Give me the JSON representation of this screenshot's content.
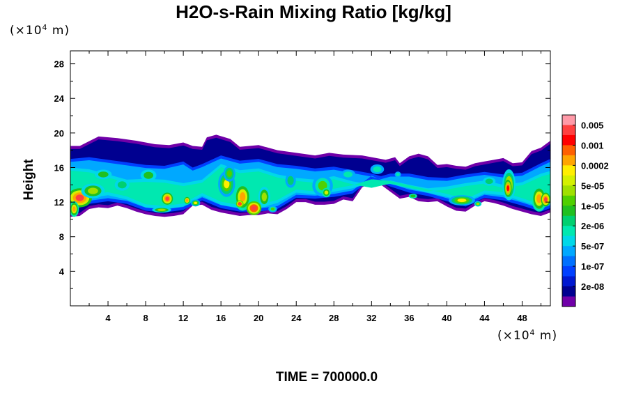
{
  "chart_data": {
    "type": "heatmap",
    "title": "H2O-s-Rain Mixing Ratio [kg/kg]",
    "xlabel": "",
    "ylabel": "Height",
    "x_unit": {
      "prefix": "(×10",
      "exp": "4",
      "suffix": " m)"
    },
    "y_unit": {
      "prefix": "(×10",
      "exp": "4",
      "suffix": " m)"
    },
    "xlim": [
      0,
      51
    ],
    "ylim": [
      0,
      29.5
    ],
    "x_ticks": [
      4,
      8,
      12,
      16,
      20,
      24,
      28,
      32,
      36,
      40,
      44,
      48
    ],
    "y_ticks": [
      4,
      8,
      12,
      16,
      20,
      24,
      28
    ],
    "footer": "TIME = 700000.0",
    "colorbar": {
      "labels": [
        "0.005",
        "0.001",
        "0.0002",
        "5e-05",
        "1e-05",
        "2e-06",
        "5e-07",
        "1e-07",
        "2e-08"
      ],
      "colors": [
        "#ff9aa8",
        "#ff4040",
        "#ff0000",
        "#ff6000",
        "#ffa500",
        "#ffee00",
        "#d4f000",
        "#a0e000",
        "#50d000",
        "#20c020",
        "#00d070",
        "#00e8b0",
        "#00d8e8",
        "#00a8ff",
        "#0070ff",
        "#0040ff",
        "#0018d0",
        "#000090",
        "#7000a8"
      ]
    },
    "bands": [
      {
        "top": [
          [
            0,
            18.5
          ],
          [
            1,
            18.5
          ],
          [
            3,
            19.6
          ],
          [
            5,
            19.4
          ],
          [
            7,
            19.1
          ],
          [
            9,
            18.7
          ],
          [
            10.5,
            18.6
          ],
          [
            12,
            18.9
          ],
          [
            13,
            18.5
          ],
          [
            14,
            18.4
          ],
          [
            14.5,
            19.5
          ],
          [
            15.5,
            19.8
          ],
          [
            17,
            19.3
          ],
          [
            18,
            18.4
          ],
          [
            20,
            18.6
          ],
          [
            22,
            18.0
          ],
          [
            24,
            17.7
          ],
          [
            26,
            17.4
          ],
          [
            27.5,
            17.7
          ],
          [
            29,
            17.5
          ],
          [
            31,
            17.4
          ],
          [
            32.5,
            17.1
          ],
          [
            33.5,
            16.9
          ],
          [
            34.5,
            17.2
          ],
          [
            35,
            16.5
          ],
          [
            36,
            17.3
          ],
          [
            37,
            17.6
          ],
          [
            38,
            17.3
          ],
          [
            39,
            16.3
          ],
          [
            40,
            16.4
          ],
          [
            41,
            16.2
          ],
          [
            42,
            16.1
          ],
          [
            43,
            16.5
          ],
          [
            44,
            16.7
          ],
          [
            45,
            16.9
          ],
          [
            46,
            17.1
          ],
          [
            47,
            16.5
          ],
          [
            48,
            16.6
          ],
          [
            49,
            17.9
          ],
          [
            50,
            18.3
          ],
          [
            51,
            19.1
          ]
        ],
        "bottom": [
          [
            0,
            10.3
          ],
          [
            1,
            10.4
          ],
          [
            2,
            11.2
          ],
          [
            3,
            11.4
          ],
          [
            4,
            11.3
          ],
          [
            5,
            11.6
          ],
          [
            6,
            11.3
          ],
          [
            7,
            10.9
          ],
          [
            8,
            10.6
          ],
          [
            9,
            10.4
          ],
          [
            10,
            10.3
          ],
          [
            11,
            10.4
          ],
          [
            12,
            10.6
          ],
          [
            13,
            11.6
          ],
          [
            14,
            11.7
          ],
          [
            15,
            11.1
          ],
          [
            16,
            10.8
          ],
          [
            17,
            10.6
          ],
          [
            18,
            10.4
          ],
          [
            19,
            10.5
          ],
          [
            20,
            10.5
          ],
          [
            21,
            10.7
          ],
          [
            22,
            10.6
          ],
          [
            23,
            11.2
          ],
          [
            24,
            12.0
          ],
          [
            25,
            12.0
          ],
          [
            26,
            11.7
          ],
          [
            27,
            11.7
          ],
          [
            28,
            11.8
          ],
          [
            29,
            12.3
          ],
          [
            30,
            12.1
          ],
          [
            31,
            13.7
          ],
          [
            32,
            14.3
          ],
          [
            33,
            14.0
          ],
          [
            34,
            13.2
          ],
          [
            35,
            12.4
          ],
          [
            36,
            12.6
          ],
          [
            37,
            12.1
          ],
          [
            38,
            12.0
          ],
          [
            39,
            12.1
          ],
          [
            40,
            11.5
          ],
          [
            41,
            11.0
          ],
          [
            42,
            10.9
          ],
          [
            43,
            11.6
          ],
          [
            44,
            12.1
          ],
          [
            45,
            11.9
          ],
          [
            46,
            11.6
          ],
          [
            47,
            11.2
          ],
          [
            48,
            10.9
          ],
          [
            49,
            10.6
          ],
          [
            50,
            10.4
          ],
          [
            51,
            10.8
          ]
        ]
      },
      {
        "top": [
          [
            0,
            17.0
          ],
          [
            2,
            17.2
          ],
          [
            4,
            16.9
          ],
          [
            6,
            16.6
          ],
          [
            8,
            16.3
          ],
          [
            10,
            16.2
          ],
          [
            12,
            16.7
          ],
          [
            13,
            16.0
          ],
          [
            14,
            16.4
          ],
          [
            16,
            17.4
          ],
          [
            18,
            16.8
          ],
          [
            20,
            17.0
          ],
          [
            22,
            16.4
          ],
          [
            24,
            16.2
          ],
          [
            26,
            15.9
          ],
          [
            28,
            16.1
          ],
          [
            30,
            15.7
          ],
          [
            32,
            15.3
          ],
          [
            33,
            15.0
          ],
          [
            34,
            15.3
          ],
          [
            36,
            15.3
          ],
          [
            38,
            14.9
          ],
          [
            40,
            14.8
          ],
          [
            42,
            15.2
          ],
          [
            44,
            15.5
          ],
          [
            46,
            15.2
          ],
          [
            48,
            15.4
          ],
          [
            50,
            16.5
          ],
          [
            51,
            17.0
          ]
        ],
        "bottom": [
          [
            0,
            10.9
          ],
          [
            2,
            11.8
          ],
          [
            4,
            12.1
          ],
          [
            6,
            11.8
          ],
          [
            8,
            11.0
          ],
          [
            10,
            10.8
          ],
          [
            12,
            11.1
          ],
          [
            14,
            12.2
          ],
          [
            16,
            11.3
          ],
          [
            18,
            10.9
          ],
          [
            20,
            10.9
          ],
          [
            22,
            11.2
          ],
          [
            24,
            12.5
          ],
          [
            26,
            12.4
          ],
          [
            28,
            12.6
          ],
          [
            30,
            13.0
          ],
          [
            32,
            14.7
          ],
          [
            34,
            13.8
          ],
          [
            36,
            13.1
          ],
          [
            38,
            12.7
          ],
          [
            40,
            12.1
          ],
          [
            42,
            11.5
          ],
          [
            44,
            12.5
          ],
          [
            46,
            12.2
          ],
          [
            48,
            11.6
          ],
          [
            50,
            10.9
          ],
          [
            51,
            11.3
          ]
        ]
      },
      {
        "top": [
          [
            0,
            16.0
          ],
          [
            2,
            15.8
          ],
          [
            4,
            15.2
          ],
          [
            6,
            14.6
          ],
          [
            8,
            14.7
          ],
          [
            10,
            14.6
          ],
          [
            12,
            14.2
          ],
          [
            14,
            14.6
          ],
          [
            16,
            16.4
          ],
          [
            18,
            15.7
          ],
          [
            20,
            15.9
          ],
          [
            22,
            15.2
          ],
          [
            24,
            14.8
          ],
          [
            26,
            14.6
          ],
          [
            28,
            15.0
          ],
          [
            30,
            14.4
          ],
          [
            32,
            14.0
          ],
          [
            34,
            14.5
          ],
          [
            36,
            14.0
          ],
          [
            38,
            13.6
          ],
          [
            40,
            13.8
          ],
          [
            42,
            14.2
          ],
          [
            44,
            14.5
          ],
          [
            46,
            14.0
          ],
          [
            48,
            14.3
          ],
          [
            50,
            15.3
          ],
          [
            51,
            15.6
          ]
        ],
        "bottom": [
          [
            0,
            11.3
          ],
          [
            2,
            12.5
          ],
          [
            4,
            12.8
          ],
          [
            6,
            12.3
          ],
          [
            8,
            11.4
          ],
          [
            10,
            11.2
          ],
          [
            12,
            11.5
          ],
          [
            14,
            12.7
          ],
          [
            16,
            11.7
          ],
          [
            18,
            11.3
          ],
          [
            20,
            11.3
          ],
          [
            22,
            11.9
          ],
          [
            24,
            13.1
          ],
          [
            26,
            12.9
          ],
          [
            28,
            13.2
          ],
          [
            30,
            13.6
          ],
          [
            32,
            14.3
          ],
          [
            34,
            14.1
          ],
          [
            36,
            13.6
          ],
          [
            38,
            13.1
          ],
          [
            40,
            12.6
          ],
          [
            42,
            12.0
          ],
          [
            44,
            13.0
          ],
          [
            46,
            12.8
          ],
          [
            48,
            12.1
          ],
          [
            50,
            11.4
          ],
          [
            51,
            11.8
          ]
        ]
      }
    ],
    "blobs": [
      {
        "x": 1.0,
        "y": 12.5,
        "rx": 1.3,
        "ry": 1.1,
        "level": 0.93
      },
      {
        "x": 2.4,
        "y": 13.3,
        "rx": 1.6,
        "ry": 1.1,
        "level": 0.62
      },
      {
        "x": 3.5,
        "y": 15.2,
        "rx": 1.6,
        "ry": 1.0,
        "level": 0.5
      },
      {
        "x": 0.4,
        "y": 11.2,
        "rx": 0.5,
        "ry": 0.9,
        "level": 0.8
      },
      {
        "x": 5.5,
        "y": 14.0,
        "rx": 1.4,
        "ry": 1.2,
        "level": 0.45
      },
      {
        "x": 8.3,
        "y": 15.1,
        "rx": 1.5,
        "ry": 1.2,
        "level": 0.48
      },
      {
        "x": 10.3,
        "y": 12.4,
        "rx": 0.6,
        "ry": 0.7,
        "level": 0.93
      },
      {
        "x": 9.7,
        "y": 11.1,
        "rx": 1.3,
        "ry": 0.4,
        "level": 0.62
      },
      {
        "x": 12.4,
        "y": 12.2,
        "rx": 0.4,
        "ry": 0.5,
        "level": 0.8
      },
      {
        "x": 13.3,
        "y": 11.9,
        "rx": 0.5,
        "ry": 0.4,
        "level": 0.72
      },
      {
        "x": 16.6,
        "y": 14.1,
        "rx": 0.9,
        "ry": 1.5,
        "level": 0.72
      },
      {
        "x": 16.9,
        "y": 15.3,
        "rx": 0.8,
        "ry": 1.2,
        "level": 0.58
      },
      {
        "x": 18.3,
        "y": 12.6,
        "rx": 0.9,
        "ry": 1.6,
        "level": 0.8
      },
      {
        "x": 19.5,
        "y": 11.3,
        "rx": 0.8,
        "ry": 0.8,
        "level": 0.95
      },
      {
        "x": 18.0,
        "y": 11.8,
        "rx": 0.4,
        "ry": 0.4,
        "level": 0.95
      },
      {
        "x": 20.6,
        "y": 12.6,
        "rx": 0.8,
        "ry": 1.5,
        "level": 0.62
      },
      {
        "x": 21.5,
        "y": 11.2,
        "rx": 0.6,
        "ry": 0.5,
        "level": 0.55
      },
      {
        "x": 23.4,
        "y": 14.5,
        "rx": 1.0,
        "ry": 1.5,
        "level": 0.42
      },
      {
        "x": 26.8,
        "y": 13.9,
        "rx": 1.4,
        "ry": 1.6,
        "level": 0.55
      },
      {
        "x": 27.2,
        "y": 13.1,
        "rx": 0.6,
        "ry": 0.7,
        "level": 0.65
      },
      {
        "x": 29.5,
        "y": 15.2,
        "rx": 1.4,
        "ry": 1.0,
        "level": 0.4
      },
      {
        "x": 32.6,
        "y": 15.8,
        "rx": 1.3,
        "ry": 1.0,
        "level": 0.4
      },
      {
        "x": 34.8,
        "y": 15.2,
        "rx": 0.6,
        "ry": 0.6,
        "level": 0.4
      },
      {
        "x": 36.4,
        "y": 12.7,
        "rx": 0.8,
        "ry": 0.5,
        "level": 0.52
      },
      {
        "x": 41.6,
        "y": 12.2,
        "rx": 1.4,
        "ry": 0.6,
        "level": 0.72
      },
      {
        "x": 43.3,
        "y": 11.8,
        "rx": 0.5,
        "ry": 0.4,
        "level": 0.6
      },
      {
        "x": 44.5,
        "y": 14.4,
        "rx": 1.2,
        "ry": 0.9,
        "level": 0.45
      },
      {
        "x": 46.6,
        "y": 14.0,
        "rx": 0.7,
        "ry": 1.8,
        "level": 0.75
      },
      {
        "x": 46.5,
        "y": 13.6,
        "rx": 0.4,
        "ry": 1.0,
        "level": 0.9
      },
      {
        "x": 49.8,
        "y": 12.4,
        "rx": 0.8,
        "ry": 1.5,
        "level": 0.8
      },
      {
        "x": 50.5,
        "y": 12.3,
        "rx": 0.5,
        "ry": 0.8,
        "level": 0.92
      }
    ]
  }
}
